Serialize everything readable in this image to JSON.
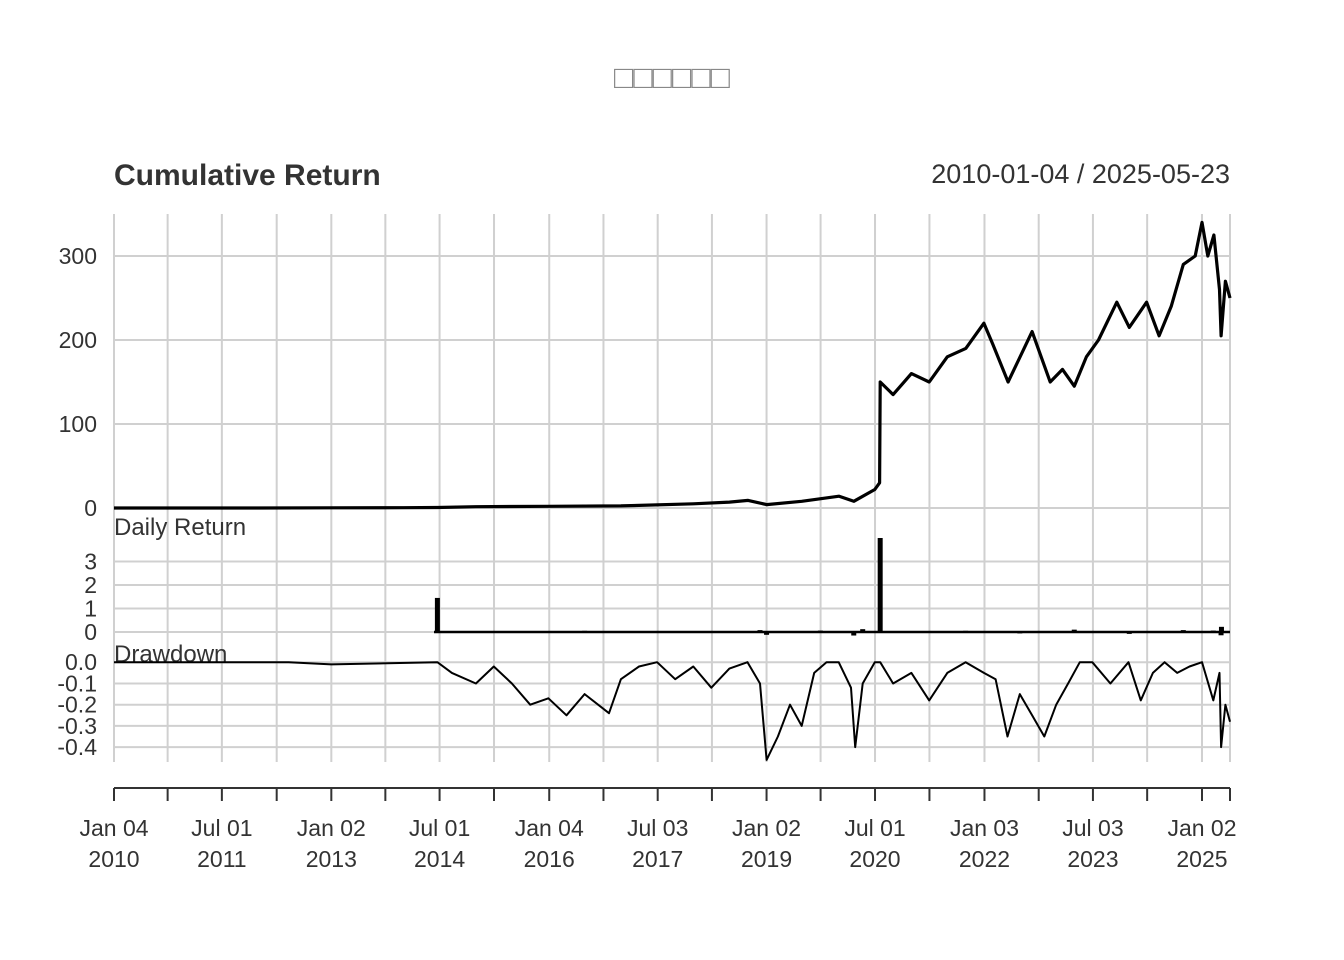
{
  "title": "□□□□□□",
  "header": {
    "heading": "Cumulative Return",
    "date_range": "2010-01-04 / 2025-05-23"
  },
  "chart_data": [
    {
      "type": "line",
      "panel": "cumulative",
      "title": "Cumulative Return",
      "ylim": [
        0,
        350
      ],
      "yticks": [
        0,
        100,
        200,
        300
      ],
      "grid": true,
      "x": [
        "2010-01-04",
        "2011-01-03",
        "2012-01-03",
        "2013-01-02",
        "2014-01-02",
        "2014-06-20",
        "2014-12-31",
        "2015-12-31",
        "2016-12-30",
        "2017-12-29",
        "2018-06-29",
        "2018-10-01",
        "2019-01-02",
        "2019-06-28",
        "2020-01-02",
        "2020-03-16",
        "2020-06-30",
        "2020-07-24",
        "2020-07-27",
        "2020-09-30",
        "2020-12-31",
        "2021-03-31",
        "2021-06-30",
        "2021-10-01",
        "2021-12-31",
        "2022-02-14",
        "2022-05-02",
        "2022-08-31",
        "2022-11-30",
        "2023-01-31",
        "2023-03-31",
        "2023-05-31",
        "2023-07-31",
        "2023-10-31",
        "2024-01-02",
        "2024-03-29",
        "2024-05-31",
        "2024-07-31",
        "2024-09-30",
        "2024-11-29",
        "2025-01-02",
        "2025-01-31",
        "2025-03-03",
        "2025-03-31",
        "2025-04-08",
        "2025-04-30",
        "2025-05-23"
      ],
      "y": [
        0,
        0,
        0,
        0.2,
        0.4,
        0.6,
        1.5,
        2,
        2.5,
        5,
        7,
        9,
        4,
        8,
        14,
        8,
        22,
        30,
        150,
        135,
        160,
        150,
        180,
        190,
        220,
        195,
        150,
        210,
        150,
        165,
        145,
        180,
        200,
        245,
        215,
        245,
        205,
        240,
        290,
        300,
        340,
        300,
        325,
        260,
        205,
        270,
        250
      ]
    },
    {
      "type": "bar",
      "panel": "daily",
      "title": "Daily Return",
      "ylim": [
        0,
        4
      ],
      "yticks": [
        0,
        1,
        2,
        3
      ],
      "grid": true,
      "x": [
        "2014-06-20",
        "2016-06-30",
        "2018-11-30",
        "2019-01-02",
        "2019-09-30",
        "2020-03-16",
        "2020-04-30",
        "2020-07-27",
        "2021-09-30",
        "2022-06-30",
        "2023-03-31",
        "2024-01-02",
        "2024-09-30",
        "2025-02-28",
        "2025-04-08",
        "2025-04-10"
      ],
      "values": [
        1.45,
        0.05,
        0.08,
        -0.12,
        0.06,
        -0.15,
        0.12,
        4.0,
        0.05,
        -0.06,
        0.1,
        -0.08,
        0.08,
        0.06,
        -0.14,
        0.22
      ]
    },
    {
      "type": "line",
      "panel": "drawdown",
      "title": "Drawdown",
      "ylim": [
        -0.47,
        0.02
      ],
      "yticks": [
        0.0,
        -0.1,
        -0.2,
        -0.3,
        -0.4
      ],
      "grid": true,
      "x": [
        "2010-01-04",
        "2012-06-01",
        "2013-01-02",
        "2014-06-20",
        "2014-09-01",
        "2014-12-31",
        "2015-03-31",
        "2015-06-30",
        "2015-09-30",
        "2015-12-31",
        "2016-03-31",
        "2016-06-30",
        "2016-10-31",
        "2016-12-30",
        "2017-03-31",
        "2017-06-30",
        "2017-09-29",
        "2017-12-29",
        "2018-03-30",
        "2018-06-29",
        "2018-09-28",
        "2018-11-30",
        "2019-01-02",
        "2019-02-28",
        "2019-04-30",
        "2019-06-28",
        "2019-08-30",
        "2019-10-31",
        "2019-12-31",
        "2020-03-02",
        "2020-03-23",
        "2020-04-30",
        "2020-06-30",
        "2020-07-27",
        "2020-09-30",
        "2020-12-31",
        "2021-03-31",
        "2021-06-30",
        "2021-09-30",
        "2021-12-31",
        "2022-02-28",
        "2022-04-29",
        "2022-06-30",
        "2022-08-31",
        "2022-10-31",
        "2022-12-30",
        "2023-02-28",
        "2023-04-28",
        "2023-06-30",
        "2023-09-29",
        "2023-12-29",
        "2024-02-29",
        "2024-04-30",
        "2024-06-28",
        "2024-08-30",
        "2024-10-31",
        "2025-01-02",
        "2025-02-28",
        "2025-03-31",
        "2025-04-08",
        "2025-04-30",
        "2025-05-23"
      ],
      "y": [
        0,
        0,
        -0.01,
        0,
        -0.05,
        -0.1,
        -0.02,
        -0.1,
        -0.2,
        -0.17,
        -0.25,
        -0.15,
        -0.24,
        -0.08,
        -0.02,
        0,
        -0.08,
        -0.02,
        -0.12,
        -0.03,
        0,
        -0.1,
        -0.46,
        -0.35,
        -0.2,
        -0.3,
        -0.05,
        0,
        0,
        -0.12,
        -0.4,
        -0.1,
        0,
        0,
        -0.1,
        -0.05,
        -0.18,
        -0.05,
        0,
        -0.05,
        -0.08,
        -0.35,
        -0.15,
        -0.25,
        -0.35,
        -0.2,
        -0.1,
        0,
        0,
        -0.1,
        0,
        -0.18,
        -0.05,
        0,
        -0.05,
        -0.02,
        0,
        -0.18,
        -0.05,
        -0.4,
        -0.2,
        -0.28
      ]
    }
  ],
  "x_axis": {
    "tick_dates": [
      "2010-01-04",
      "2010-10-01",
      "2011-07-01",
      "2012-04-02",
      "2013-01-02",
      "2013-10-01",
      "2014-07-01",
      "2015-04-01",
      "2016-01-04",
      "2016-10-03",
      "2017-07-03",
      "2018-04-02",
      "2019-01-02",
      "2019-10-01",
      "2020-07-01",
      "2021-04-01",
      "2022-01-03",
      "2022-10-03",
      "2023-07-03",
      "2024-04-01",
      "2025-01-02",
      "2025-05-23"
    ],
    "labels": [
      {
        "date": "2010-01-04",
        "line1": "Jan 04",
        "line2": "2010"
      },
      {
        "date": "2011-07-01",
        "line1": "Jul 01",
        "line2": "2011"
      },
      {
        "date": "2013-01-02",
        "line1": "Jan 02",
        "line2": "2013"
      },
      {
        "date": "2014-07-01",
        "line1": "Jul 01",
        "line2": "2014"
      },
      {
        "date": "2016-01-04",
        "line1": "Jan 04",
        "line2": "2016"
      },
      {
        "date": "2017-07-03",
        "line1": "Jul 03",
        "line2": "2017"
      },
      {
        "date": "2019-01-02",
        "line1": "Jan 02",
        "line2": "2019"
      },
      {
        "date": "2020-07-01",
        "line1": "Jul 01",
        "line2": "2020"
      },
      {
        "date": "2022-01-03",
        "line1": "Jan 03",
        "line2": "2022"
      },
      {
        "date": "2023-07-03",
        "line1": "Jul 03",
        "line2": "2023"
      },
      {
        "date": "2025-01-02",
        "line1": "Jan 02",
        "line2": "2025"
      }
    ]
  },
  "colors": {
    "line": "#000000",
    "grid": "#d0d0d0",
    "text": "#333333",
    "title": "#888888"
  }
}
